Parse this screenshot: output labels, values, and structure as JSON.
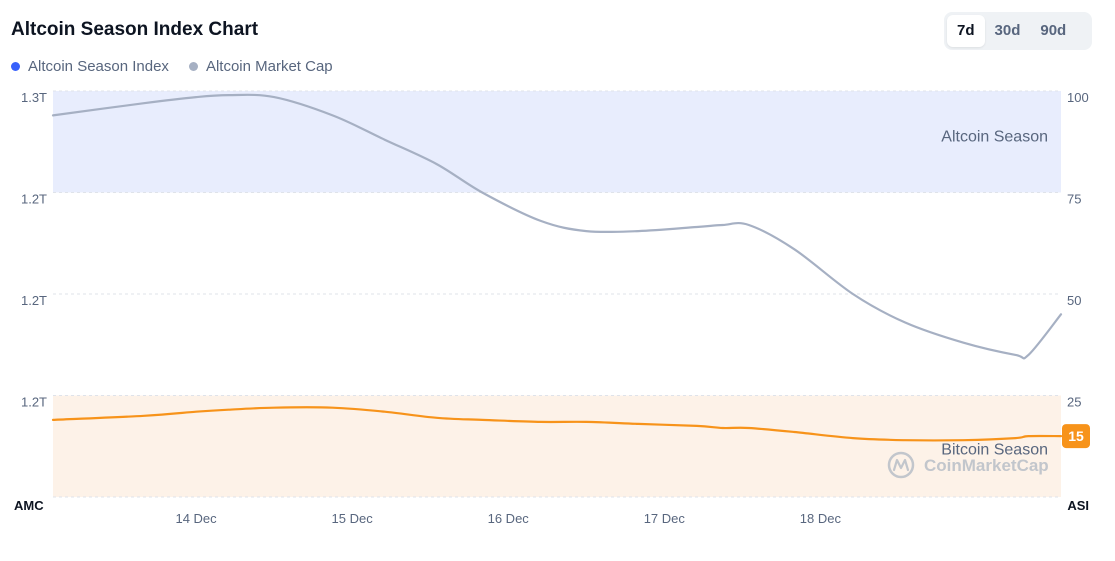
{
  "header": {
    "title": "Altcoin Season Index Chart",
    "ranges": [
      {
        "label": "7d",
        "active": true
      },
      {
        "label": "30d",
        "active": false
      },
      {
        "label": "90d",
        "active": false
      }
    ]
  },
  "legend": [
    {
      "label": "Altcoin Season Index",
      "color": "#3861fb"
    },
    {
      "label": "Altcoin Market Cap",
      "color": "#a6b0c3"
    }
  ],
  "watermark": "CoinMarketCap",
  "chart_data": {
    "type": "line",
    "x": [
      "2024-12-13T02:00",
      "2024-12-13T16:00",
      "2024-12-14T00:00",
      "2024-12-14T05:00",
      "2024-12-14T12:00",
      "2024-12-14T21:00",
      "2024-12-15T05:00",
      "2024-12-15T13:00",
      "2024-12-15T20:00",
      "2024-12-16T05:00",
      "2024-12-16T12:00",
      "2024-12-16T20:00",
      "2024-12-17T05:00",
      "2024-12-17T09:00",
      "2024-12-17T13:00",
      "2024-12-17T20:00",
      "2024-12-18T05:00",
      "2024-12-18T13:00",
      "2024-12-18T22:00",
      "2024-12-19T06:00",
      "2024-12-19T08:00",
      "2024-12-19T13:00"
    ],
    "x_ticks": [
      "14 Dec",
      "15 Dec",
      "16 Dec",
      "17 Dec",
      "18 Dec"
    ],
    "x_tick_values": [
      "2024-12-14T00:00",
      "2024-12-15T00:00",
      "2024-12-16T00:00",
      "2024-12-17T00:00",
      "2024-12-18T00:00"
    ],
    "x_edge_labels": {
      "left": "AMC",
      "right": "ASI"
    },
    "series": [
      {
        "name": "Altcoin Market Cap",
        "axis": "left",
        "color": "#a6b0c3",
        "values": [
          94,
          97,
          98.5,
          99,
          98.5,
          94,
          88,
          82,
          75,
          68,
          65.5,
          65.5,
          66.5,
          67,
          67,
          61,
          50,
          43,
          38,
          35,
          35,
          45
        ]
      },
      {
        "name": "Altcoin Season Index",
        "axis": "right",
        "color": "#f7931a",
        "values": [
          19,
          20,
          21,
          21.5,
          22,
          22,
          21,
          19.5,
          19,
          18.5,
          18.5,
          18,
          17.5,
          17,
          17,
          16,
          14.5,
          14,
          14,
          14.5,
          15,
          15
        ]
      }
    ],
    "left_axis": {
      "ticks": [
        "1.3T",
        "1.2T",
        "1.2T",
        "1.2T"
      ]
    },
    "right_axis": {
      "ticks": [
        "100",
        "75",
        "50",
        "25"
      ],
      "ylim": [
        0,
        100
      ]
    },
    "zones": [
      {
        "label": "Altcoin Season",
        "from": 75,
        "to": 100,
        "color": "#e8edfd"
      },
      {
        "label": "Bitcoin Season",
        "from": 0,
        "to": 25,
        "color": "#fdf2e8"
      }
    ],
    "current_value": "15",
    "current_badge_color": "#f7931a",
    "grid": true
  }
}
